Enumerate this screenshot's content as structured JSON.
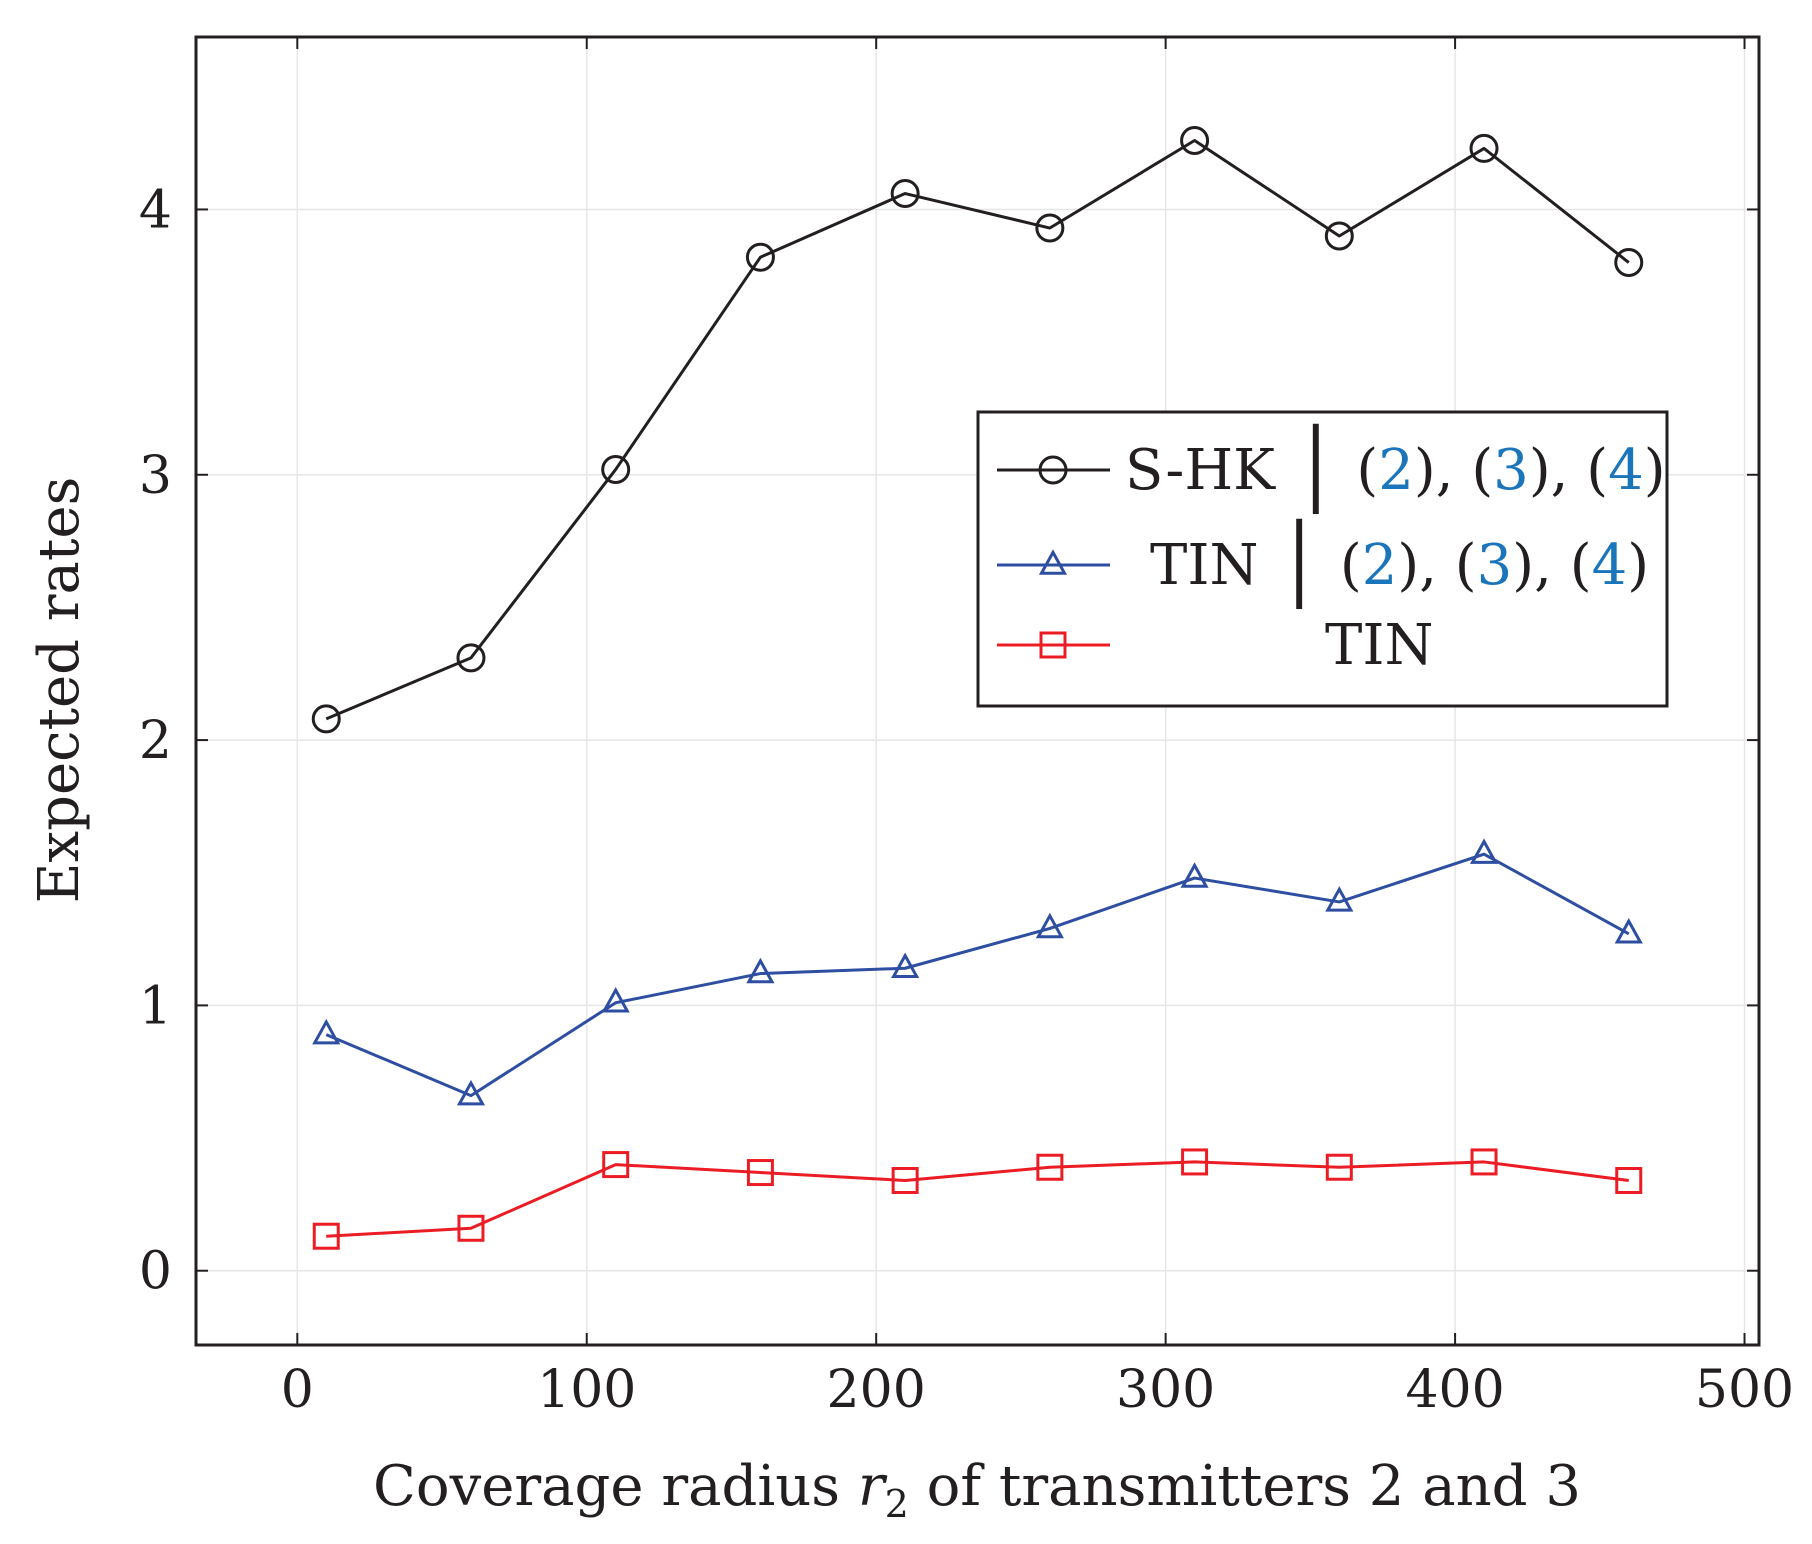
{
  "chart_data": {
    "type": "line",
    "title": "",
    "xlabel": "Coverage radius r2 of transmitters 2 and 3",
    "xlabel_parts": {
      "prefix": "Coverage radius ",
      "var": "r",
      "sub": "2",
      "suffix": " of transmitters 2 and 3"
    },
    "ylabel": "Expected rates",
    "xlim": [
      -35,
      505
    ],
    "ylim": [
      -0.28,
      4.65
    ],
    "xticks": [
      0,
      100,
      200,
      300,
      400,
      500
    ],
    "yticks": [
      0,
      1,
      2,
      3,
      4
    ],
    "grid": true,
    "legend_position": "right-center",
    "x": [
      10,
      60,
      110,
      160,
      210,
      260,
      310,
      360,
      410,
      460
    ],
    "series": [
      {
        "name": "S-HK | (2), (3), (4)",
        "legend_main": "S-HK",
        "legend_refs": [
          "2",
          "3",
          "4"
        ],
        "color": "#231f20",
        "marker": "circle",
        "values": [
          2.08,
          2.31,
          3.02,
          3.82,
          4.06,
          3.93,
          4.26,
          3.9,
          4.23,
          3.8
        ]
      },
      {
        "name": "TIN | (2), (3), (4)",
        "legend_main": "TIN",
        "legend_refs": [
          "2",
          "3",
          "4"
        ],
        "color": "#2e4ea1",
        "marker": "triangle",
        "values": [
          0.89,
          0.66,
          1.01,
          1.12,
          1.14,
          1.29,
          1.48,
          1.39,
          1.57,
          1.27
        ]
      },
      {
        "name": "TIN",
        "legend_main": "TIN",
        "legend_refs": [],
        "color": "#ec1c24",
        "marker": "square",
        "values": [
          0.13,
          0.16,
          0.4,
          0.37,
          0.34,
          0.39,
          0.41,
          0.39,
          0.41,
          0.34
        ]
      }
    ],
    "ref_color": "#1b75bb"
  }
}
